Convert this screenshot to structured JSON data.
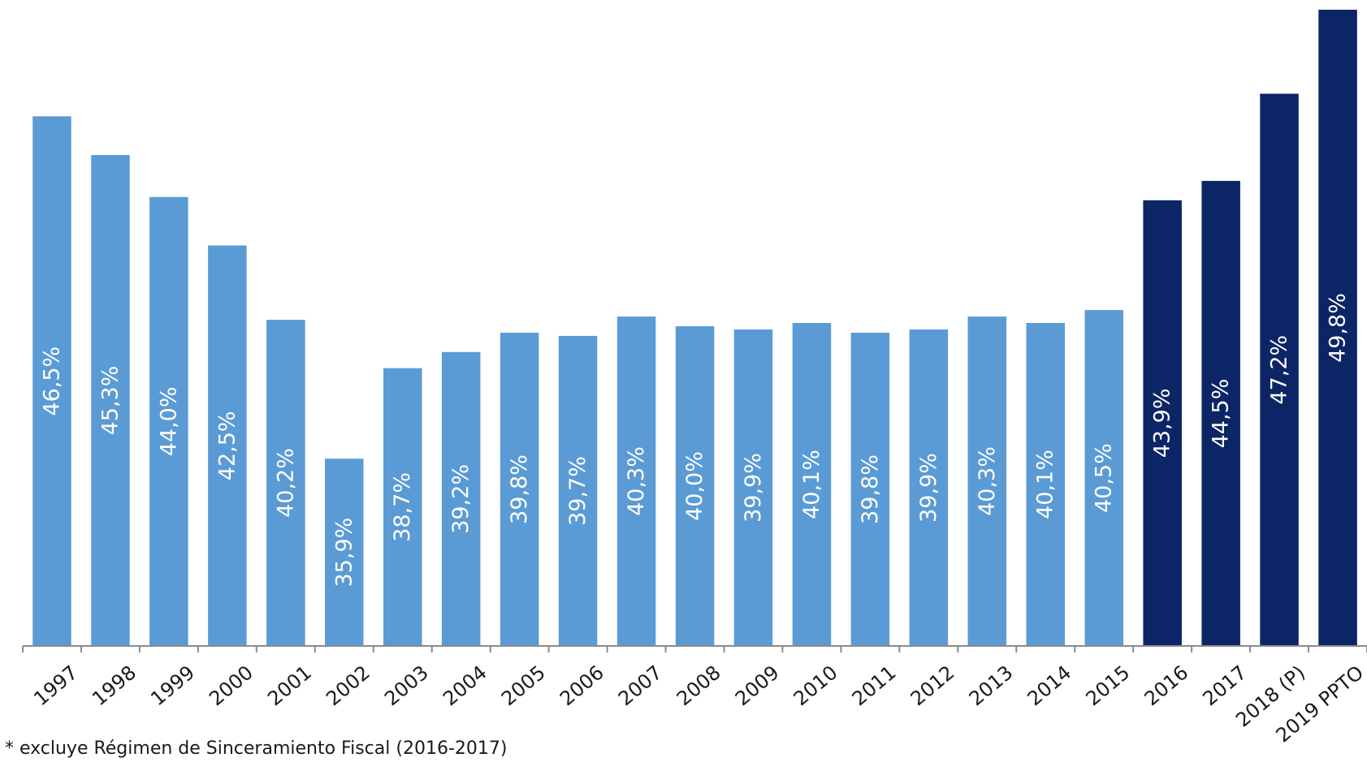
{
  "chart_data": {
    "type": "bar",
    "title": "",
    "xlabel": "",
    "ylabel": "",
    "categories": [
      "1997",
      "1998",
      "1999",
      "2000",
      "2001",
      "2002",
      "2003",
      "2004",
      "2005",
      "2006",
      "2007",
      "2008",
      "2009",
      "2010",
      "2011",
      "2012",
      "2013",
      "2014",
      "2015",
      "2016",
      "2017",
      "2018 (P)",
      "2019 PPTO"
    ],
    "values": [
      46.5,
      45.3,
      44.0,
      42.5,
      40.2,
      35.9,
      38.7,
      39.2,
      39.8,
      39.7,
      40.3,
      40.0,
      39.9,
      40.1,
      39.8,
      39.9,
      40.3,
      40.1,
      40.5,
      43.9,
      44.5,
      47.2,
      49.8
    ],
    "data_labels": [
      "46,5%",
      "45,3%",
      "44,0%",
      "42,5%",
      "40,2%",
      "35,9%",
      "38,7%",
      "39,2%",
      "39,8%",
      "39,7%",
      "40,3%",
      "40,0%",
      "39,9%",
      "40,1%",
      "39,8%",
      "39,9%",
      "40,3%",
      "40,1%",
      "40,5%",
      "43,9%",
      "44,5%",
      "47,2%",
      "49,8%"
    ],
    "highlight": [
      false,
      false,
      false,
      false,
      false,
      false,
      false,
      false,
      false,
      false,
      false,
      false,
      false,
      false,
      false,
      false,
      false,
      false,
      false,
      true,
      true,
      true,
      true
    ],
    "ylim": [
      30.1,
      49.8
    ],
    "grid": false,
    "legend": "none",
    "colors": {
      "bar": "#5b9bd5",
      "bar_highlight": "#0b2566",
      "label_text": "#ffffff",
      "axis": "#8a8a8a",
      "tick_text": "#1a1a1a"
    }
  },
  "footnote": "* excluye Régimen de Sinceramiento Fiscal (2016-2017)"
}
